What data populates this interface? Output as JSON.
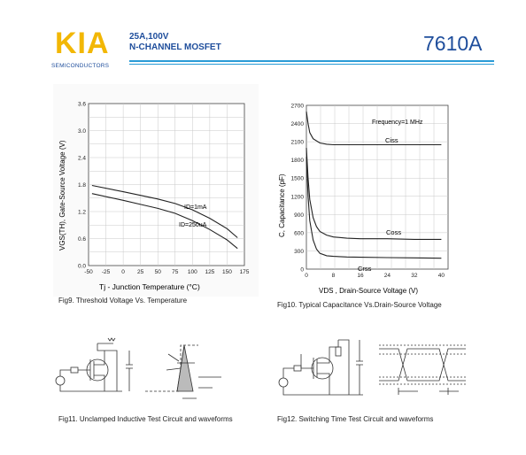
{
  "header": {
    "logo": "KIA",
    "logo_sub": "SEMICONDUCTORS",
    "line1": "25A,100V",
    "line2": "N-CHANNEL MOSFET",
    "part_number": "7610A",
    "accent": "#f2b705",
    "brand_blue": "#1f4e9c",
    "rule_color": "#2a9bd6"
  },
  "chart_data": [
    {
      "type": "line",
      "ylabel": "VGS(TH), Gate-Source Voltage (V)",
      "xlabel": "Tj - Junction Temperature (°C)",
      "x_ticks": [
        -50,
        -25,
        0,
        25,
        50,
        75,
        100,
        125,
        150,
        175
      ],
      "y_ticks": [
        0.0,
        0.6,
        1.2,
        1.8,
        2.4,
        3.0,
        3.6
      ],
      "x_tick_labels": [
        "-50",
        "-25",
        "0",
        "25",
        "50",
        "75",
        "100",
        "125",
        "150",
        "175"
      ],
      "y_tick_labels": [
        "0.0",
        "0.6",
        "1.2",
        "1.8",
        "2.4",
        "3.0",
        "3.6"
      ],
      "xlim": [
        -50,
        175
      ],
      "ylim": [
        0,
        3.6
      ],
      "grid": true,
      "series": [
        {
          "name": "ID=1mA",
          "x": [
            -45,
            0,
            25,
            50,
            75,
            100,
            125,
            150,
            165
          ],
          "y": [
            1.78,
            1.64,
            1.56,
            1.48,
            1.38,
            1.24,
            1.05,
            0.82,
            0.62
          ]
        },
        {
          "name": "ID=250uA",
          "x": [
            -45,
            0,
            25,
            50,
            75,
            100,
            125,
            150,
            165
          ],
          "y": [
            1.6,
            1.45,
            1.36,
            1.27,
            1.16,
            1.0,
            0.8,
            0.57,
            0.38
          ]
        }
      ],
      "labels": [
        "ID=1mA",
        "ID=250uA"
      ],
      "caption": "Fig9. Threshold Voltage Vs. Temperature"
    },
    {
      "type": "line",
      "ylabel": "C, Capacitance (pF)",
      "xlabel": "VDS , Drain-Source Voltage (V)",
      "x_ticks": [
        0,
        8,
        16,
        24,
        32,
        40
      ],
      "y_ticks": [
        0,
        300,
        600,
        900,
        1200,
        1500,
        1800,
        2100,
        2400,
        2700
      ],
      "x_tick_labels": [
        "0",
        "8",
        "16",
        "24",
        "32",
        "40"
      ],
      "y_tick_labels": [
        "0",
        "300",
        "600",
        "900",
        "1200",
        "1500",
        "1800",
        "2100",
        "2400",
        "2700"
      ],
      "xlim": [
        0,
        42
      ],
      "ylim": [
        0,
        2700
      ],
      "grid": true,
      "annotation": "Frequency=1 MHz",
      "series": [
        {
          "name": "Ciss",
          "x": [
            0,
            0.5,
            1,
            2,
            4,
            6,
            8,
            12,
            16,
            24,
            32,
            40
          ],
          "y": [
            2600,
            2400,
            2250,
            2150,
            2080,
            2060,
            2050,
            2050,
            2050,
            2050,
            2050,
            2050
          ]
        },
        {
          "name": "Coss",
          "x": [
            0,
            0.5,
            1,
            2,
            3,
            4,
            6,
            8,
            12,
            16,
            24,
            32,
            40
          ],
          "y": [
            2000,
            1500,
            1150,
            850,
            700,
            620,
            560,
            530,
            510,
            500,
            500,
            490,
            490
          ]
        },
        {
          "name": "Crss",
          "x": [
            0,
            0.5,
            1,
            2,
            3,
            4,
            6,
            8,
            12,
            16,
            24,
            32,
            40
          ],
          "y": [
            1850,
            1200,
            800,
            480,
            330,
            260,
            220,
            210,
            200,
            195,
            190,
            185,
            180
          ]
        }
      ],
      "labels": [
        "Ciss",
        "Coss",
        "Crss"
      ],
      "caption": "Fig10. Typical Capacitance Vs.Drain-Source Voltage"
    }
  ],
  "figures": {
    "fig11_caption": "Fig11. Unclamped Inductive Test Circuit and   waveforms",
    "fig12_caption": "Fig12. Switching Time Test Circuit and waveforms"
  }
}
